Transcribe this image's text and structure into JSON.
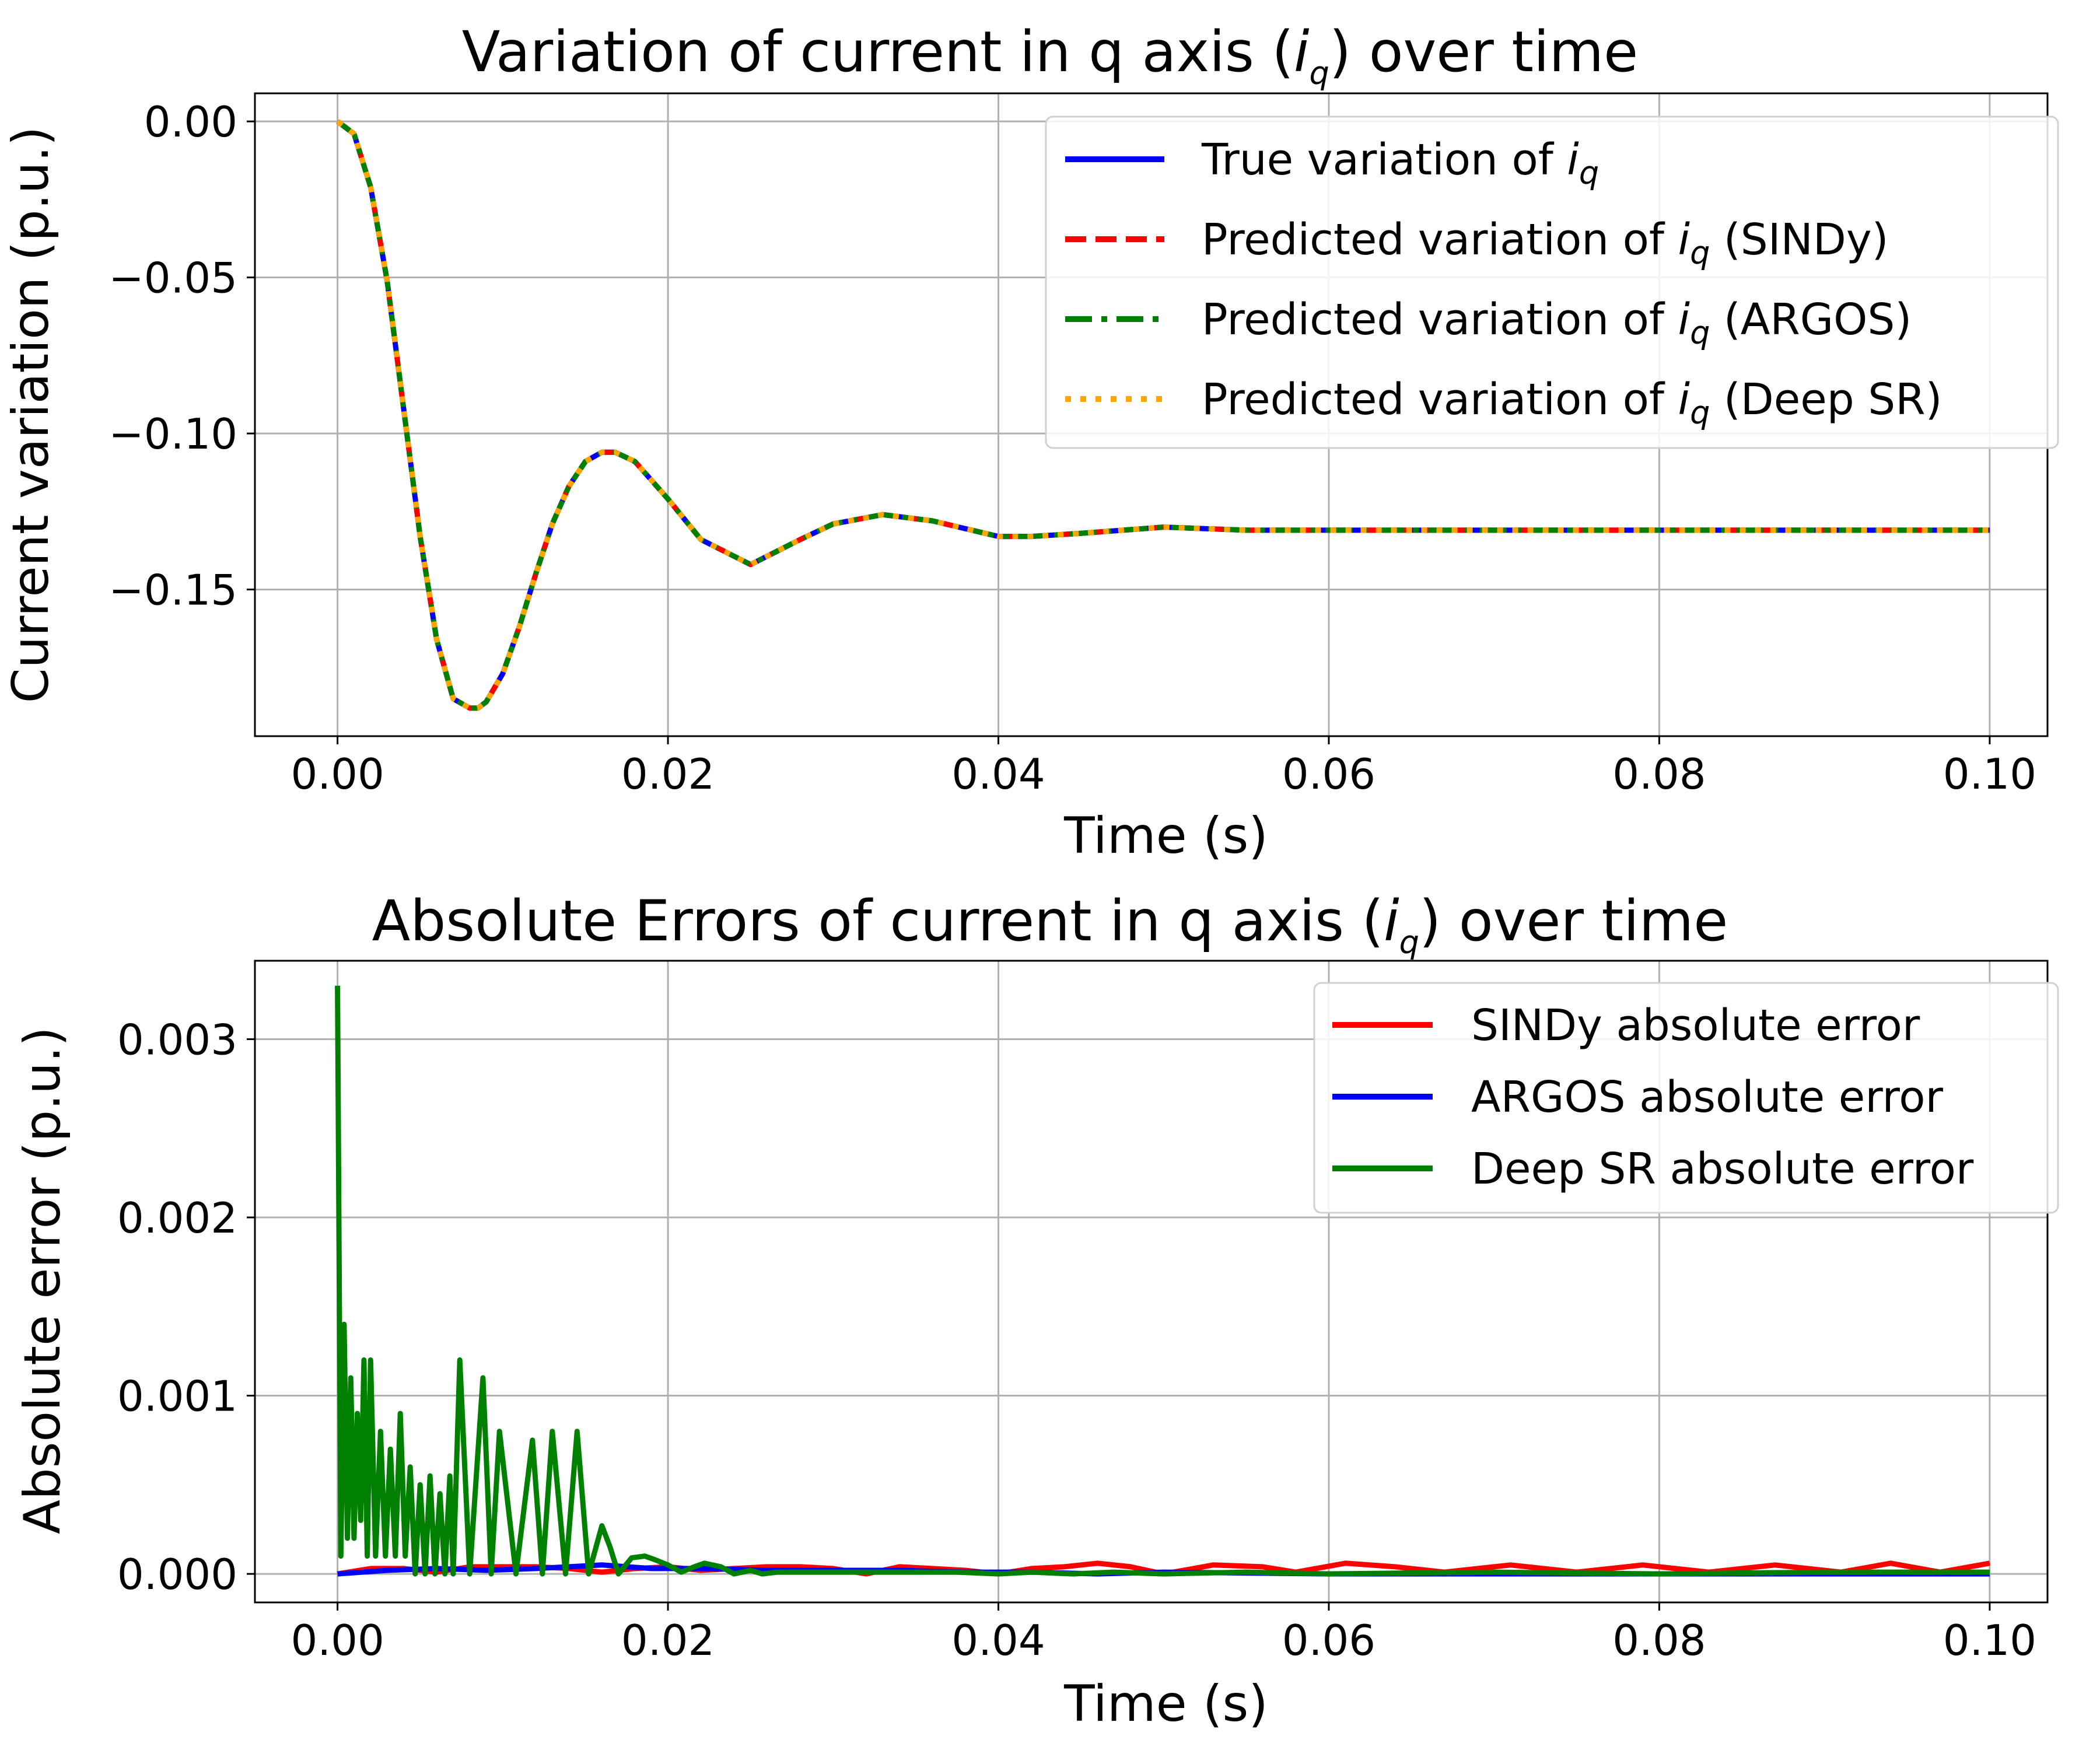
{
  "chart_data": [
    {
      "type": "line",
      "title": "Variation of current in q axis (i_q) over time",
      "title_parts": {
        "pre": "Variation of current in q axis (",
        "var": "i",
        "sub": "q",
        "post": ") over time"
      },
      "xlabel": "Time (s)",
      "ylabel": "Current variation (p.u.)",
      "xlim": [
        -0.005,
        0.1035
      ],
      "ylim": [
        -0.197,
        0.009
      ],
      "xticks": [
        0.0,
        0.02,
        0.04,
        0.06,
        0.08,
        0.1
      ],
      "xtick_labels": [
        "0.00",
        "0.02",
        "0.04",
        "0.06",
        "0.08",
        "0.10"
      ],
      "yticks": [
        0.0,
        -0.05,
        -0.1,
        -0.15
      ],
      "ytick_labels": [
        "0.00",
        "−0.05",
        "−0.10",
        "−0.15"
      ],
      "grid": true,
      "legend_position": "upper right",
      "curve_model": "damped oscillation: y(t) = -0.131 + 0.131*exp(-a*t)*(cos(w*t) + (a/w)*sin(w*t))",
      "series": [
        {
          "name": "True variation of i_q",
          "legend": {
            "pre": "True variation of ",
            "var": "i",
            "sub": "q",
            "post": ""
          },
          "color": "#0000ff",
          "style": "solid"
        },
        {
          "name": "Predicted variation of i_q (SINDy)",
          "legend": {
            "pre": "Predicted variation of ",
            "var": "i",
            "sub": "q",
            "post": " (SINDy)"
          },
          "color": "#ff0000",
          "style": "dashed"
        },
        {
          "name": "Predicted variation of i_q (ARGOS)",
          "legend": {
            "pre": "Predicted variation of ",
            "var": "i",
            "sub": "q",
            "post": " (ARGOS)"
          },
          "color": "#008000",
          "style": "dashdot"
        },
        {
          "name": "Predicted variation of i_q (Deep SR)",
          "legend": {
            "pre": "Predicted variation of ",
            "var": "i",
            "sub": "q",
            "post": " (Deep SR)"
          },
          "color": "#ffa500",
          "style": "dotted"
        }
      ],
      "x": [
        0.0,
        0.001,
        0.002,
        0.003,
        0.004,
        0.005,
        0.006,
        0.007,
        0.008,
        0.0085,
        0.009,
        0.01,
        0.011,
        0.012,
        0.013,
        0.014,
        0.015,
        0.016,
        0.0168,
        0.018,
        0.02,
        0.022,
        0.025,
        0.028,
        0.03,
        0.033,
        0.036,
        0.04,
        0.042,
        0.045,
        0.05,
        0.055,
        0.06,
        0.07,
        0.08,
        0.09,
        0.1
      ],
      "y": [
        0.0,
        -0.004,
        -0.021,
        -0.051,
        -0.092,
        -0.133,
        -0.166,
        -0.185,
        -0.188,
        -0.188,
        -0.186,
        -0.177,
        -0.162,
        -0.145,
        -0.129,
        -0.117,
        -0.109,
        -0.106,
        -0.106,
        -0.109,
        -0.121,
        -0.134,
        -0.142,
        -0.134,
        -0.129,
        -0.126,
        -0.128,
        -0.133,
        -0.133,
        -0.132,
        -0.13,
        -0.131,
        -0.131,
        -0.131,
        -0.131,
        -0.131,
        -0.131
      ]
    },
    {
      "type": "line",
      "title": "Absolute Errors of current in q axis (i_q) over time",
      "title_parts": {
        "pre": "Absolute Errors of current in q axis (",
        "var": "i",
        "sub": "q",
        "post": ") over time"
      },
      "xlabel": "Time (s)",
      "ylabel": "Absolute error (p.u.)",
      "xlim": [
        -0.005,
        0.1035
      ],
      "ylim": [
        -0.00016,
        0.00344
      ],
      "xticks": [
        0.0,
        0.02,
        0.04,
        0.06,
        0.08,
        0.1
      ],
      "xtick_labels": [
        "0.00",
        "0.02",
        "0.04",
        "0.06",
        "0.08",
        "0.10"
      ],
      "yticks": [
        0.0,
        0.001,
        0.002,
        0.003
      ],
      "ytick_labels": [
        "0.000",
        "0.001",
        "0.002",
        "0.003"
      ],
      "grid": true,
      "legend_position": "upper right",
      "series": [
        {
          "name": "SINDy absolute error",
          "color": "#ff0000",
          "style": "solid",
          "x": [
            0.0,
            0.002,
            0.004,
            0.006,
            0.008,
            0.01,
            0.012,
            0.014,
            0.016,
            0.018,
            0.02,
            0.022,
            0.024,
            0.026,
            0.028,
            0.03,
            0.032,
            0.034,
            0.036,
            0.038,
            0.04,
            0.042,
            0.044,
            0.046,
            0.048,
            0.05,
            0.053,
            0.056,
            0.058,
            0.061,
            0.064,
            0.067,
            0.071,
            0.075,
            0.079,
            0.083,
            0.087,
            0.091,
            0.094,
            0.097,
            0.1
          ],
          "y": [
            0.0,
            3e-05,
            3e-05,
            1e-05,
            4e-05,
            4e-05,
            4e-05,
            3e-05,
            1e-05,
            3e-05,
            4e-05,
            2e-05,
            3e-05,
            4e-05,
            4e-05,
            3e-05,
            0.0,
            4e-05,
            3e-05,
            2e-05,
            0.0,
            3e-05,
            4e-05,
            6e-05,
            4e-05,
            0.0,
            5e-05,
            4e-05,
            1e-05,
            6e-05,
            4e-05,
            1e-05,
            5e-05,
            1e-05,
            5e-05,
            1e-05,
            5e-05,
            1e-05,
            6e-05,
            1e-05,
            6e-05
          ]
        },
        {
          "name": "ARGOS absolute error",
          "color": "#0000ff",
          "style": "solid",
          "x": [
            0.0,
            0.003,
            0.006,
            0.009,
            0.012,
            0.016,
            0.019,
            0.022,
            0.026,
            0.03,
            0.034,
            0.038,
            0.042,
            0.046,
            0.05,
            0.06,
            0.07,
            0.08,
            0.09,
            0.1
          ],
          "y": [
            0.0,
            2e-05,
            3e-05,
            2e-05,
            3e-05,
            5e-05,
            3e-05,
            3e-05,
            2e-05,
            2e-05,
            2e-05,
            1e-05,
            1e-05,
            0.0,
            1e-05,
            0.0,
            0.0,
            0.0,
            0.0,
            0.0
          ]
        },
        {
          "name": "Deep SR absolute error",
          "color": "#008000",
          "style": "solid",
          "x": [
            0.0,
            0.0002,
            0.0004,
            0.0006,
            0.0008,
            0.001,
            0.0012,
            0.0014,
            0.0016,
            0.0018,
            0.002,
            0.0023,
            0.0026,
            0.0029,
            0.0032,
            0.0035,
            0.0038,
            0.0041,
            0.0044,
            0.0047,
            0.005,
            0.0053,
            0.0056,
            0.0059,
            0.0062,
            0.0065,
            0.0068,
            0.007,
            0.0074,
            0.008,
            0.0088,
            0.0093,
            0.0098,
            0.0108,
            0.0118,
            0.0124,
            0.013,
            0.0138,
            0.0145,
            0.0152,
            0.016,
            0.0165,
            0.017,
            0.0178,
            0.0186,
            0.0192,
            0.02,
            0.0208,
            0.0216,
            0.0222,
            0.0232,
            0.024,
            0.025,
            0.0257,
            0.0266,
            0.0276,
            0.0286,
            0.0296,
            0.0312,
            0.0322,
            0.0335,
            0.035,
            0.0375,
            0.04,
            0.042,
            0.0445,
            0.047,
            0.05,
            0.055,
            0.06,
            0.07,
            0.08,
            0.09,
            0.1
          ],
          "y": [
            0.0033,
            0.0001,
            0.0014,
            0.0002,
            0.0011,
            0.0002,
            0.0009,
            0.0003,
            0.0012,
            0.0001,
            0.0012,
            0.0001,
            0.0008,
            0.0001,
            0.0007,
            0.0001,
            0.0009,
            0.0001,
            0.0006,
            0.0,
            0.0005,
            0.0,
            0.00055,
            0.0,
            0.00045,
            0.0,
            0.00055,
            0.0,
            0.0012,
            0.0,
            0.0011,
            0.0,
            0.0008,
            0.0,
            0.00075,
            0.0,
            0.0008,
            0.0,
            0.0008,
            0.0,
            0.00027,
            0.00015,
            0.0,
            9e-05,
            0.0001,
            8e-05,
            5e-05,
            1e-05,
            4e-05,
            6e-05,
            4e-05,
            0.0,
            2e-05,
            0.0,
            1e-05,
            1e-05,
            1e-05,
            1e-05,
            1e-05,
            1e-05,
            1e-05,
            1e-05,
            1e-05,
            0.0,
            1e-05,
            0.0,
            1e-05,
            0.0,
            1e-05,
            0.0,
            1e-05,
            0.0,
            1e-05,
            1e-05
          ]
        }
      ]
    }
  ]
}
